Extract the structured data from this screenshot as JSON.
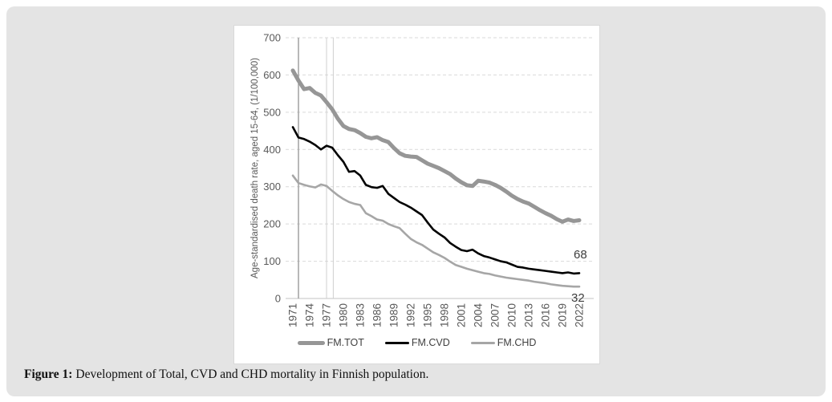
{
  "page": {
    "background": "#ffffff",
    "panel_color": "#e4e4e4"
  },
  "figure_caption": {
    "label": "Figure 1:",
    "text": "Development of Total, CVD and CHD mortality in Finnish population."
  },
  "chart_data": {
    "type": "line",
    "title": "",
    "xlabel": "",
    "ylabel": "Age-standardised death rate, aged 15-64, (1/100,000)",
    "ylim": [
      0,
      700
    ],
    "y_ticks": [
      0,
      100,
      200,
      300,
      400,
      500,
      600,
      700
    ],
    "grid": "horizontal-dashed",
    "legend_position": "bottom",
    "years": [
      1971,
      1972,
      1973,
      1974,
      1975,
      1976,
      1977,
      1978,
      1979,
      1980,
      1981,
      1982,
      1983,
      1984,
      1985,
      1986,
      1987,
      1988,
      1989,
      1990,
      1991,
      1992,
      1993,
      1994,
      1995,
      1996,
      1997,
      1998,
      1999,
      2000,
      2001,
      2002,
      2003,
      2004,
      2005,
      2006,
      2007,
      2008,
      2009,
      2010,
      2011,
      2012,
      2013,
      2014,
      2015,
      2016,
      2017,
      2018,
      2019,
      2020,
      2021,
      2022
    ],
    "x_tick_labels": [
      "1971",
      "1974",
      "1977",
      "1980",
      "1983",
      "1986",
      "1989",
      "1992",
      "1995",
      "1998",
      "2001",
      "2004",
      "2007",
      "2010",
      "2013",
      "2016",
      "2019",
      "2022"
    ],
    "series": [
      {
        "name": "FM.TOT",
        "color": "#969696",
        "width": 5,
        "values": [
          612,
          585,
          562,
          565,
          552,
          545,
          527,
          508,
          483,
          463,
          455,
          452,
          444,
          434,
          430,
          433,
          425,
          420,
          404,
          390,
          383,
          381,
          380,
          371,
          362,
          356,
          350,
          342,
          334,
          322,
          312,
          304,
          302,
          316,
          314,
          311,
          305,
          297,
          287,
          276,
          267,
          260,
          255,
          246,
          237,
          229,
          222,
          213,
          206,
          212,
          208,
          210
        ]
      },
      {
        "name": "FM.CVD",
        "color": "#000000",
        "width": 2.6,
        "values": [
          460,
          432,
          428,
          421,
          412,
          400,
          410,
          405,
          385,
          367,
          340,
          342,
          330,
          305,
          299,
          297,
          302,
          281,
          270,
          259,
          252,
          244,
          234,
          224,
          204,
          185,
          174,
          164,
          149,
          139,
          130,
          127,
          131,
          121,
          114,
          110,
          105,
          100,
          97,
          91,
          85,
          83,
          80,
          78,
          76,
          74,
          72,
          70,
          68,
          70,
          67,
          68
        ]
      },
      {
        "name": "FM.CHD",
        "color": "#a6a6a6",
        "width": 2.6,
        "values": [
          330,
          310,
          305,
          301,
          298,
          306,
          302,
          289,
          277,
          267,
          259,
          254,
          251,
          229,
          221,
          212,
          209,
          200,
          194,
          189,
          174,
          160,
          151,
          144,
          134,
          124,
          117,
          109,
          99,
          90,
          85,
          80,
          76,
          72,
          68,
          66,
          62,
          59,
          56,
          54,
          52,
          50,
          48,
          45,
          43,
          41,
          38,
          36,
          34,
          33,
          32,
          32
        ]
      }
    ],
    "end_labels": [
      {
        "series": "FM.CVD",
        "text": "68"
      },
      {
        "series": "FM.CHD",
        "text": "32"
      }
    ],
    "vlines": [
      {
        "x_year": 1972,
        "color": "#9b9b9b",
        "width": 1.4
      },
      {
        "x_year": 1977,
        "color": "#cfcfcf",
        "width": 1
      },
      {
        "x_year": 1978.2,
        "color": "#cfcfcf",
        "width": 1
      }
    ],
    "gridline_color": "#d9d9d9",
    "axis_line_color": "#c3c3c3",
    "tick_label_color": "#595959"
  }
}
